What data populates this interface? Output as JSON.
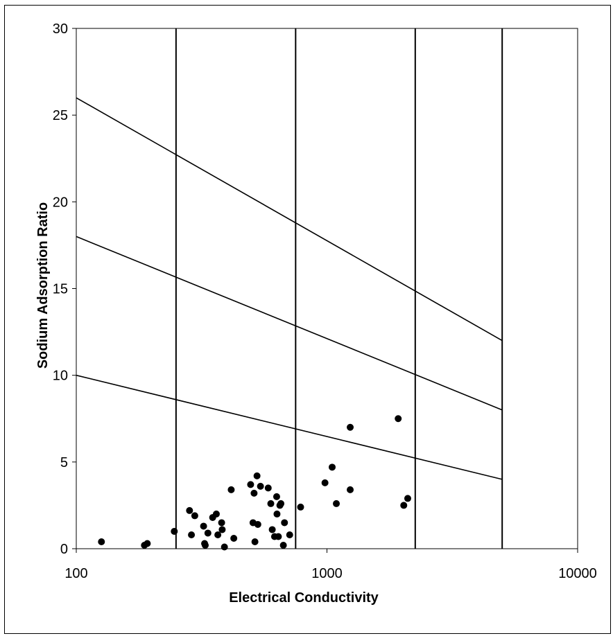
{
  "chart_data": {
    "type": "scatter",
    "title": "",
    "xlabel": "Electrical Conductivity",
    "ylabel": "Sodium Adsorption Ratio",
    "x_scale": "log",
    "xlim": [
      100,
      10000
    ],
    "ylim": [
      0,
      30
    ],
    "x_ticks": [
      "100",
      "1000",
      "10000"
    ],
    "y_ticks": [
      "0",
      "5",
      "10",
      "15",
      "20",
      "25",
      "30"
    ],
    "grid": false,
    "legend": "none",
    "vertical_boundaries": [
      250,
      750,
      2250,
      5000
    ],
    "diagonal_lines": [
      {
        "x": [
          100,
          5000
        ],
        "y": [
          26,
          12
        ]
      },
      {
        "x": [
          100,
          5000
        ],
        "y": [
          18,
          8
        ]
      },
      {
        "x": [
          100,
          5000
        ],
        "y": [
          10,
          4
        ]
      }
    ],
    "points": [
      [
        126,
        0.4
      ],
      [
        187,
        0.2
      ],
      [
        192,
        0.3
      ],
      [
        246,
        1.0
      ],
      [
        283,
        2.2
      ],
      [
        288,
        0.8
      ],
      [
        297,
        1.9
      ],
      [
        322,
        1.3
      ],
      [
        325,
        0.3
      ],
      [
        327,
        0.2
      ],
      [
        335,
        0.9
      ],
      [
        350,
        1.8
      ],
      [
        362,
        2.0
      ],
      [
        367,
        0.8
      ],
      [
        380,
        1.5
      ],
      [
        382,
        1.1
      ],
      [
        390,
        0.1
      ],
      [
        415,
        3.4
      ],
      [
        425,
        0.6
      ],
      [
        496,
        3.7
      ],
      [
        507,
        1.5
      ],
      [
        512,
        3.2
      ],
      [
        516,
        0.4
      ],
      [
        526,
        4.2
      ],
      [
        530,
        1.4
      ],
      [
        543,
        3.6
      ],
      [
        583,
        3.5
      ],
      [
        597,
        2.6
      ],
      [
        605,
        1.1
      ],
      [
        618,
        0.7
      ],
      [
        630,
        3.0
      ],
      [
        632,
        2.0
      ],
      [
        640,
        0.7
      ],
      [
        649,
        2.5
      ],
      [
        655,
        2.6
      ],
      [
        670,
        0.2
      ],
      [
        677,
        1.5
      ],
      [
        710,
        0.8
      ],
      [
        785,
        2.4
      ],
      [
        982,
        3.8
      ],
      [
        1049,
        4.7
      ],
      [
        1090,
        2.6
      ],
      [
        1238,
        7.0
      ],
      [
        1238,
        3.4
      ],
      [
        1924,
        7.5
      ],
      [
        2025,
        2.5
      ],
      [
        2100,
        2.9
      ]
    ],
    "marker_color": "#000000",
    "line_color": "#000000"
  }
}
